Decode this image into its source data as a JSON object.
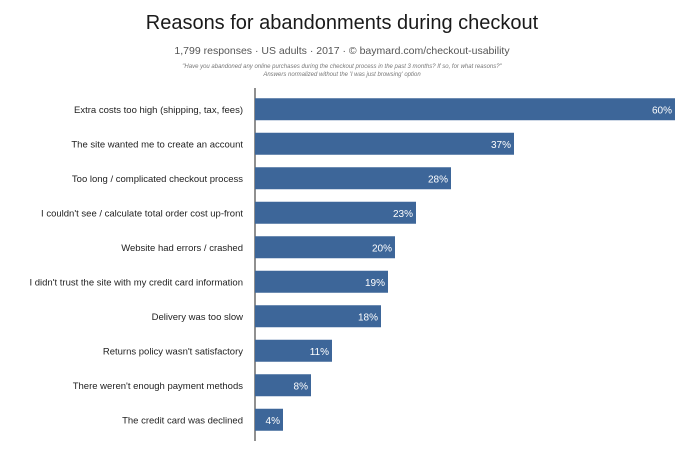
{
  "header": {
    "title": "Reasons for abandonments during checkout",
    "subtitle": "1,799 responses  ·  US adults  ·  2017  ·  © baymard.com/checkout-usability",
    "note_line1": "\"Have you abandoned any online purchases during the checkout process in the past 3 months? If so, for what reasons?\"",
    "note_line2": "Answers normalized without the 'I was just browsing' option"
  },
  "colors": {
    "bar": "#3d6699",
    "axis": "#222222"
  },
  "chart_data": {
    "type": "bar",
    "orientation": "horizontal",
    "title": "Reasons for abandonments during checkout",
    "xlabel": "",
    "ylabel": "",
    "xlim": [
      0,
      60
    ],
    "grid": false,
    "categories": [
      "Extra costs too high (shipping, tax, fees)",
      "The site wanted me to create an account",
      "Too long / complicated checkout process",
      "I couldn't see / calculate total order cost up-front",
      "Website had errors / crashed",
      "I didn't trust the site with my credit card information",
      "Delivery was too slow",
      "Returns policy wasn't satisfactory",
      "There weren't enough payment methods",
      "The credit card was declined"
    ],
    "values": [
      60,
      37,
      28,
      23,
      20,
      19,
      18,
      11,
      8,
      4
    ],
    "labels": [
      "60%",
      "37%",
      "28%",
      "23%",
      "20%",
      "19%",
      "18%",
      "11%",
      "8%",
      "4%"
    ]
  }
}
